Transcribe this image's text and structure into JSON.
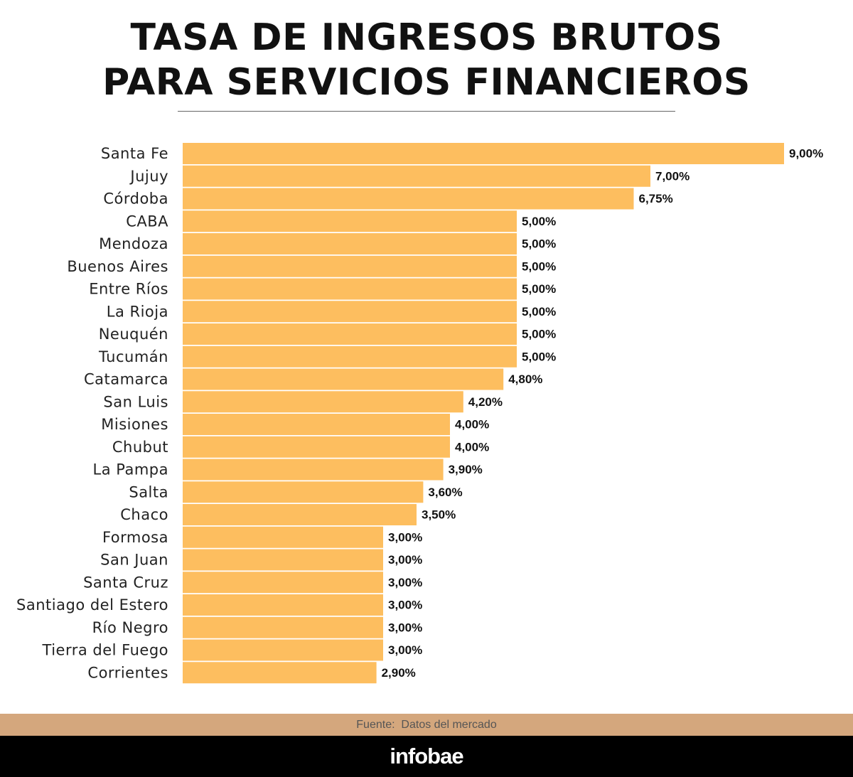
{
  "title": {
    "line1": "TASA DE INGRESOS BRUTOS",
    "line2": "PARA SERVICIOS FINANCIEROS"
  },
  "chart_data": {
    "type": "bar",
    "orientation": "horizontal",
    "title": "TASA DE INGRESOS BRUTOS PARA SERVICIOS FINANCIEROS",
    "categories": [
      "Santa Fe",
      "Jujuy",
      "Córdoba",
      "CABA",
      "Mendoza",
      "Buenos Aires",
      "Entre Ríos",
      "La Rioja",
      "Neuquén",
      "Tucumán",
      "Catamarca",
      "San Luis",
      "Misiones",
      "Chubut",
      "La Pampa",
      "Salta",
      "Chaco",
      "Formosa",
      "San Juan",
      "Santa Cruz",
      "Santiago del Estero",
      "Río Negro",
      "Tierra del Fuego",
      "Corrientes"
    ],
    "values": [
      9.0,
      7.0,
      6.75,
      5.0,
      5.0,
      5.0,
      5.0,
      5.0,
      5.0,
      5.0,
      4.8,
      4.2,
      4.0,
      4.0,
      3.9,
      3.6,
      3.5,
      3.0,
      3.0,
      3.0,
      3.0,
      3.0,
      3.0,
      2.9
    ],
    "value_labels": [
      "9,00%",
      "7,00%",
      "6,75%",
      "5,00%",
      "5,00%",
      "5,00%",
      "5,00%",
      "5,00%",
      "5,00%",
      "5,00%",
      "4,80%",
      "4,20%",
      "4,00%",
      "4,00%",
      "3,90%",
      "3,60%",
      "3,50%",
      "3,00%",
      "3,00%",
      "3,00%",
      "3,00%",
      "3,00%",
      "3,00%",
      "2,90%"
    ],
    "xlim": [
      0,
      9
    ],
    "unit": "%",
    "grid": false,
    "legend": "none",
    "bar_color": "#fdbe5f"
  },
  "source": "Fuente:  Datos del mercado",
  "brand": "infobae",
  "colors": {
    "bar": "#fdbe5f",
    "source_band": "#d4a77d",
    "footer": "#000000"
  }
}
